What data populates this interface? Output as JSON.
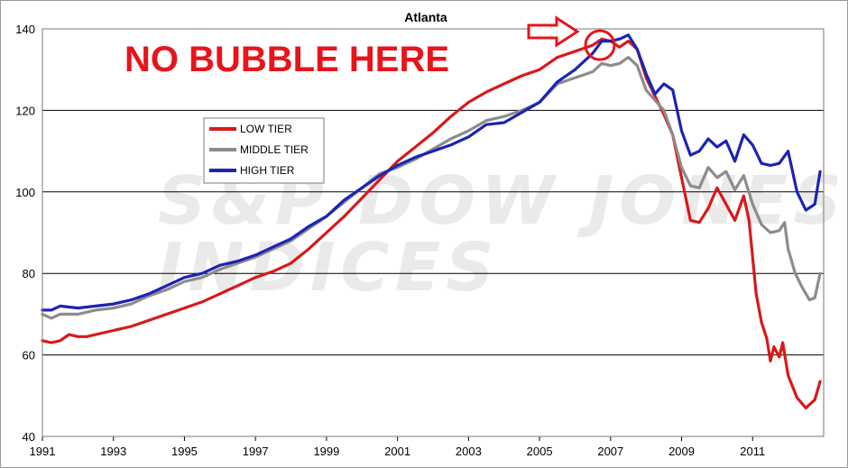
{
  "chart_data": {
    "type": "line",
    "title": "Atlanta",
    "xlabel": "",
    "ylabel": "",
    "xlim": [
      1991,
      2012.6
    ],
    "ylim": [
      40,
      140
    ],
    "x_ticks": [
      "1991",
      "1993",
      "1995",
      "1997",
      "1999",
      "2001",
      "2003",
      "2005",
      "2007",
      "2009",
      "2011"
    ],
    "y_ticks": [
      "40",
      "60",
      "80",
      "100",
      "120",
      "140"
    ],
    "grid": "horizontal",
    "legend_position": "left",
    "watermark": [
      "S&P DOW JONES",
      "INDICES"
    ],
    "annotation": {
      "text": "NO BUBBLE HERE",
      "color": "#e8141b",
      "arrow_icon": "right-arrow-icon",
      "circle_icon": "highlight-circle-icon",
      "circle_at": {
        "x": 2006.7,
        "y": 136
      }
    },
    "series": [
      {
        "name": "LOW TIER",
        "color": "#d7191c",
        "points": [
          [
            1991.0,
            63.5
          ],
          [
            1991.25,
            63.0
          ],
          [
            1991.5,
            63.5
          ],
          [
            1991.75,
            65.0
          ],
          [
            1992.0,
            64.5
          ],
          [
            1992.25,
            64.5
          ],
          [
            1992.5,
            65.0
          ],
          [
            1993.0,
            66.0
          ],
          [
            1993.5,
            67.0
          ],
          [
            1994.0,
            68.5
          ],
          [
            1994.5,
            70.0
          ],
          [
            1995.0,
            71.5
          ],
          [
            1995.5,
            73.0
          ],
          [
            1996.0,
            75.0
          ],
          [
            1996.5,
            77.0
          ],
          [
            1997.0,
            79.0
          ],
          [
            1997.5,
            80.5
          ],
          [
            1998.0,
            82.5
          ],
          [
            1998.5,
            86.0
          ],
          [
            1999.0,
            90.0
          ],
          [
            1999.5,
            94.0
          ],
          [
            2000.0,
            98.5
          ],
          [
            2000.5,
            103.0
          ],
          [
            2001.0,
            107.5
          ],
          [
            2001.5,
            111.0
          ],
          [
            2002.0,
            114.5
          ],
          [
            2002.5,
            118.5
          ],
          [
            2003.0,
            122.0
          ],
          [
            2003.5,
            124.5
          ],
          [
            2004.0,
            126.5
          ],
          [
            2004.5,
            128.5
          ],
          [
            2005.0,
            130.0
          ],
          [
            2005.5,
            133.0
          ],
          [
            2006.0,
            134.5
          ],
          [
            2006.5,
            136.0
          ],
          [
            2006.75,
            137.5
          ],
          [
            2007.0,
            137.0
          ],
          [
            2007.25,
            135.5
          ],
          [
            2007.5,
            137.0
          ],
          [
            2007.75,
            135.0
          ],
          [
            2008.0,
            128.0
          ],
          [
            2008.5,
            119.0
          ],
          [
            2008.75,
            114.0
          ],
          [
            2009.0,
            103.5
          ],
          [
            2009.25,
            93.0
          ],
          [
            2009.5,
            92.5
          ],
          [
            2009.75,
            96.0
          ],
          [
            2010.0,
            101.0
          ],
          [
            2010.25,
            97.0
          ],
          [
            2010.5,
            93.0
          ],
          [
            2010.75,
            99.0
          ],
          [
            2010.9,
            93.0
          ],
          [
            2011.1,
            75.0
          ],
          [
            2011.25,
            68.0
          ],
          [
            2011.4,
            64.0
          ],
          [
            2011.5,
            58.5
          ],
          [
            2011.6,
            62.0
          ],
          [
            2011.75,
            59.5
          ],
          [
            2011.85,
            63.0
          ],
          [
            2012.0,
            55.0
          ],
          [
            2012.25,
            49.5
          ],
          [
            2012.5,
            47.0
          ],
          [
            2012.75,
            49.0
          ],
          [
            2012.9,
            53.5
          ]
        ]
      },
      {
        "name": "MIDDLE TIER",
        "color": "#8c8c8c",
        "points": [
          [
            1991.0,
            70.0
          ],
          [
            1991.25,
            69.0
          ],
          [
            1991.5,
            70.0
          ],
          [
            1992.0,
            70.0
          ],
          [
            1992.5,
            71.0
          ],
          [
            1993.0,
            71.5
          ],
          [
            1993.5,
            72.5
          ],
          [
            1994.0,
            74.5
          ],
          [
            1994.5,
            76.0
          ],
          [
            1995.0,
            78.0
          ],
          [
            1995.5,
            79.0
          ],
          [
            1996.0,
            81.0
          ],
          [
            1996.5,
            82.5
          ],
          [
            1997.0,
            84.0
          ],
          [
            1997.5,
            86.0
          ],
          [
            1998.0,
            88.0
          ],
          [
            1998.5,
            91.0
          ],
          [
            1999.0,
            94.0
          ],
          [
            1999.5,
            97.5
          ],
          [
            2000.0,
            101.0
          ],
          [
            2000.5,
            104.5
          ],
          [
            2001.0,
            106.0
          ],
          [
            2001.5,
            108.0
          ],
          [
            2002.0,
            110.5
          ],
          [
            2002.5,
            113.0
          ],
          [
            2003.0,
            115.0
          ],
          [
            2003.5,
            117.5
          ],
          [
            2004.0,
            118.5
          ],
          [
            2004.5,
            120.0
          ],
          [
            2005.0,
            122.0
          ],
          [
            2005.5,
            126.5
          ],
          [
            2006.0,
            128.0
          ],
          [
            2006.5,
            129.5
          ],
          [
            2006.75,
            131.5
          ],
          [
            2007.0,
            131.0
          ],
          [
            2007.25,
            131.5
          ],
          [
            2007.5,
            133.0
          ],
          [
            2007.75,
            131.0
          ],
          [
            2008.0,
            125.0
          ],
          [
            2008.5,
            120.0
          ],
          [
            2008.75,
            114.0
          ],
          [
            2009.0,
            106.0
          ],
          [
            2009.25,
            101.5
          ],
          [
            2009.5,
            101.0
          ],
          [
            2009.75,
            106.0
          ],
          [
            2010.0,
            103.5
          ],
          [
            2010.25,
            105.0
          ],
          [
            2010.5,
            100.5
          ],
          [
            2010.75,
            104.0
          ],
          [
            2011.0,
            97.0
          ],
          [
            2011.25,
            92.0
          ],
          [
            2011.5,
            90.0
          ],
          [
            2011.75,
            90.5
          ],
          [
            2011.9,
            92.5
          ],
          [
            2012.0,
            86.0
          ],
          [
            2012.2,
            80.0
          ],
          [
            2012.4,
            76.5
          ],
          [
            2012.6,
            73.5
          ],
          [
            2012.75,
            74.0
          ],
          [
            2012.9,
            80.0
          ]
        ]
      },
      {
        "name": "HIGH TIER",
        "color": "#1b24b3",
        "points": [
          [
            1991.0,
            71.0
          ],
          [
            1991.25,
            71.0
          ],
          [
            1991.5,
            72.0
          ],
          [
            1992.0,
            71.5
          ],
          [
            1992.5,
            72.0
          ],
          [
            1993.0,
            72.5
          ],
          [
            1993.5,
            73.5
          ],
          [
            1994.0,
            75.0
          ],
          [
            1994.5,
            77.0
          ],
          [
            1995.0,
            79.0
          ],
          [
            1995.5,
            80.0
          ],
          [
            1996.0,
            82.0
          ],
          [
            1996.5,
            83.0
          ],
          [
            1997.0,
            84.5
          ],
          [
            1997.5,
            86.5
          ],
          [
            1998.0,
            88.5
          ],
          [
            1998.5,
            91.5
          ],
          [
            1999.0,
            94.0
          ],
          [
            1999.5,
            98.0
          ],
          [
            2000.0,
            101.0
          ],
          [
            2000.5,
            104.0
          ],
          [
            2001.0,
            106.5
          ],
          [
            2001.5,
            108.5
          ],
          [
            2002.0,
            110.0
          ],
          [
            2002.5,
            111.5
          ],
          [
            2003.0,
            113.5
          ],
          [
            2003.5,
            116.5
          ],
          [
            2004.0,
            117.0
          ],
          [
            2004.5,
            119.5
          ],
          [
            2005.0,
            122.0
          ],
          [
            2005.5,
            127.0
          ],
          [
            2006.0,
            130.0
          ],
          [
            2006.5,
            134.0
          ],
          [
            2006.75,
            137.0
          ],
          [
            2007.0,
            137.0
          ],
          [
            2007.25,
            137.5
          ],
          [
            2007.5,
            138.5
          ],
          [
            2007.75,
            135.0
          ],
          [
            2008.0,
            129.0
          ],
          [
            2008.25,
            124.0
          ],
          [
            2008.5,
            126.5
          ],
          [
            2008.75,
            125.0
          ],
          [
            2009.0,
            115.0
          ],
          [
            2009.25,
            109.0
          ],
          [
            2009.5,
            110.0
          ],
          [
            2009.75,
            113.0
          ],
          [
            2010.0,
            111.0
          ],
          [
            2010.25,
            112.5
          ],
          [
            2010.5,
            107.5
          ],
          [
            2010.75,
            114.0
          ],
          [
            2011.0,
            111.5
          ],
          [
            2011.25,
            107.0
          ],
          [
            2011.5,
            106.5
          ],
          [
            2011.75,
            107.0
          ],
          [
            2012.0,
            110.0
          ],
          [
            2012.25,
            100.0
          ],
          [
            2012.5,
            95.5
          ],
          [
            2012.75,
            97.0
          ],
          [
            2012.9,
            105.0
          ]
        ]
      }
    ]
  }
}
